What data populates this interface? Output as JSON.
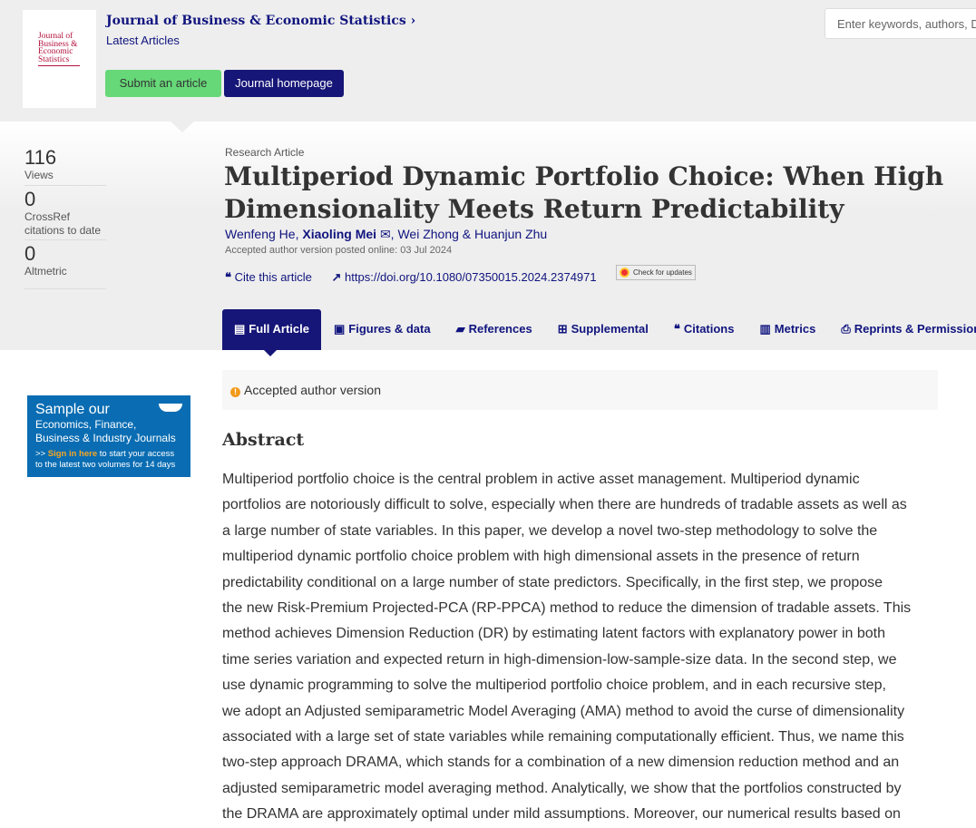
{
  "header": {
    "cover_text": "Journal of Business & Economic Statistics",
    "journal_title": "Journal of Business & Economic Statistics ›",
    "subtitle": "Latest Articles",
    "submit": "Submit an article",
    "homepage": "Journal homepage",
    "search_placeholder": "Enter keywords, authors, DOI, ORCID etc"
  },
  "metrics": [
    {
      "value": "116",
      "label": "Views"
    },
    {
      "value": "0",
      "label": "CrossRef citations to date"
    },
    {
      "value": "0",
      "label": "Altmetric"
    }
  ],
  "article": {
    "type": "Research Article",
    "title": "Multiperiod Dynamic Portfolio Choice: When High Dimensionality Meets Return Predictability",
    "authors": [
      "Wenfeng He,",
      "Xiaoling Mei",
      "Wei Zhong",
      "&",
      "Huanjun Zhu"
    ],
    "posted": "Accepted author version posted online: 03 Jul 2024",
    "cite": "Cite this article",
    "doi": "https://doi.org/10.1080/07350015.2024.2374971",
    "check_updates": "Check for updates"
  },
  "tabs": [
    {
      "label": "Full Article",
      "icon": "file-icon"
    },
    {
      "label": "Figures & data",
      "icon": "image-icon"
    },
    {
      "label": "References",
      "icon": "book-icon"
    },
    {
      "label": "Supplemental",
      "icon": "plus-square-icon"
    },
    {
      "label": "Citations",
      "icon": "quote-icon"
    },
    {
      "label": "Metrics",
      "icon": "bar-chart-icon"
    },
    {
      "label": "Reprints & Permissions",
      "icon": "print-icon"
    }
  ],
  "notice": "Accepted author version",
  "abstract": {
    "heading": "Abstract",
    "lines": [
      "Multiperiod portfolio choice is the central problem in active asset management. Multiperiod dynamic",
      "portfolios are notoriously difficult to solve, especially when there are hundreds of tradable assets as well as",
      "a large number of state variables. In this paper, we develop a novel two-step methodology to solve the",
      "multiperiod dynamic portfolio choice problem with high dimensional assets in the presence of return",
      "predictability conditional on a large number of state predictors. Specifically, in the first step, we propose",
      "the new Risk-Premium Projected-PCA (RP-PPCA) method to reduce the dimension of tradable assets. This",
      "method achieves Dimension Reduction (DR) by estimating latent factors with explanatory power in both",
      "time series variation and expected return in high-dimension-low-sample-size data. In the second step, we",
      "use dynamic programming to solve the multiperiod portfolio choice problem, and in each recursive step,",
      "we adopt an Adjusted semiparametric Model Averaging (AMA) method to avoid the curse of dimensionality",
      "associated with a large set of state variables while remaining computationally efficient. Thus, we name this",
      "two-step approach DRAMA, which stands for a combination of a new dimension reduction method and an",
      "adjusted semiparametric model averaging method. Analytically, we show that the portfolios constructed by",
      "the DRAMA are approximately optimal under mild assumptions. Moreover, our numerical results based on"
    ]
  },
  "ad": {
    "line1": "Sample our",
    "line2": "Economics, Finance,",
    "line3": "Business & Industry Journals",
    "prefix": ">>",
    "signin": "Sign in here",
    "rest": "to start your access to the latest two volumes for 14 days"
  },
  "colors": {
    "brand": "#161678",
    "submit": "#66d878",
    "ad": "#0a6db3"
  }
}
